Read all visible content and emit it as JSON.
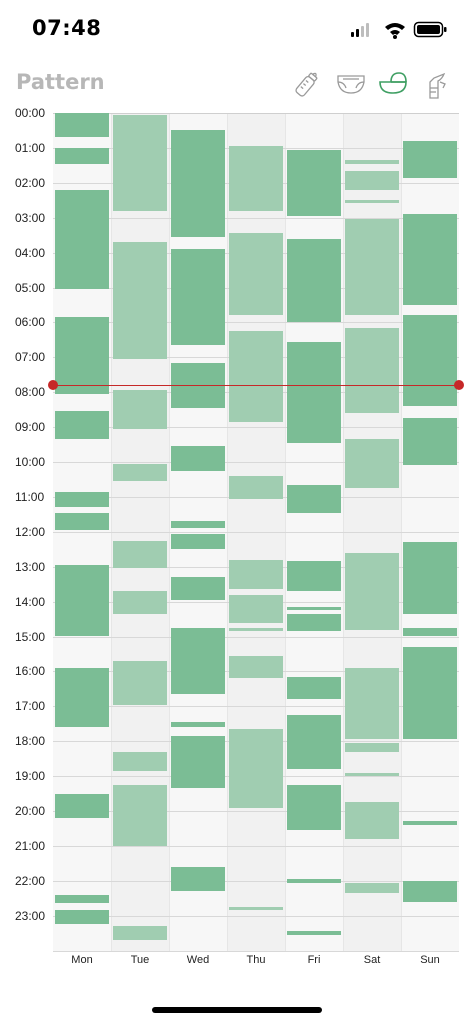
{
  "status_bar": {
    "time": "07:48"
  },
  "header": {
    "title": "Pattern"
  },
  "toolbar": {
    "tools": [
      {
        "icon": "bottle-icon",
        "selected": false
      },
      {
        "icon": "diaper-icon",
        "selected": false
      },
      {
        "icon": "sleep-bassinet-icon",
        "selected": true
      },
      {
        "icon": "breast-pump-icon",
        "selected": false
      }
    ]
  },
  "colors": {
    "accent": "#3f9f63",
    "sleep_dark": "#7bbd95",
    "sleep_light": "#a0cdb1",
    "now_line": "#c62828",
    "column_shade": "#f1f1f1",
    "column_plain": "#f7f7f7"
  },
  "chart_data": {
    "type": "timeline",
    "y_ticks": [
      "00:00",
      "01:00",
      "02:00",
      "03:00",
      "04:00",
      "05:00",
      "06:00",
      "07:00",
      "08:00",
      "09:00",
      "10:00",
      "11:00",
      "12:00",
      "13:00",
      "14:00",
      "15:00",
      "16:00",
      "17:00",
      "18:00",
      "19:00",
      "20:00",
      "21:00",
      "22:00",
      "23:00"
    ],
    "y_range_hours": [
      0,
      24
    ],
    "days": [
      "Mon",
      "Tue",
      "Wed",
      "Thu",
      "Fri",
      "Sat",
      "Sun"
    ],
    "current_time_hours": 7.8,
    "sleep_blocks": [
      {
        "day": 0,
        "start": 0.0,
        "end": 0.7,
        "shade": "dark"
      },
      {
        "day": 0,
        "start": 1.0,
        "end": 1.45,
        "shade": "dark"
      },
      {
        "day": 0,
        "start": 2.2,
        "end": 5.05,
        "shade": "dark"
      },
      {
        "day": 0,
        "start": 5.85,
        "end": 8.05,
        "shade": "dark"
      },
      {
        "day": 0,
        "start": 8.55,
        "end": 9.35,
        "shade": "dark"
      },
      {
        "day": 0,
        "start": 10.85,
        "end": 11.3,
        "shade": "dark"
      },
      {
        "day": 0,
        "start": 11.45,
        "end": 11.95,
        "shade": "dark"
      },
      {
        "day": 0,
        "start": 12.95,
        "end": 15.0,
        "shade": "dark"
      },
      {
        "day": 0,
        "start": 15.9,
        "end": 17.6,
        "shade": "dark"
      },
      {
        "day": 0,
        "start": 19.5,
        "end": 20.2,
        "shade": "dark"
      },
      {
        "day": 0,
        "start": 22.4,
        "end": 22.65,
        "shade": "dark"
      },
      {
        "day": 0,
        "start": 22.85,
        "end": 23.25,
        "shade": "dark"
      },
      {
        "day": 1,
        "start": 0.05,
        "end": 2.8,
        "shade": "light"
      },
      {
        "day": 1,
        "start": 3.7,
        "end": 7.05,
        "shade": "light"
      },
      {
        "day": 1,
        "start": 7.95,
        "end": 9.05,
        "shade": "light"
      },
      {
        "day": 1,
        "start": 10.05,
        "end": 10.55,
        "shade": "light"
      },
      {
        "day": 1,
        "start": 12.25,
        "end": 13.05,
        "shade": "light"
      },
      {
        "day": 1,
        "start": 13.7,
        "end": 14.35,
        "shade": "light"
      },
      {
        "day": 1,
        "start": 15.7,
        "end": 16.95,
        "shade": "light"
      },
      {
        "day": 1,
        "start": 18.3,
        "end": 18.85,
        "shade": "light"
      },
      {
        "day": 1,
        "start": 19.25,
        "end": 21.0,
        "shade": "light"
      },
      {
        "day": 1,
        "start": 23.3,
        "end": 23.7,
        "shade": "light"
      },
      {
        "day": 2,
        "start": 0.5,
        "end": 3.55,
        "shade": "dark"
      },
      {
        "day": 2,
        "start": 3.9,
        "end": 6.65,
        "shade": "dark"
      },
      {
        "day": 2,
        "start": 7.15,
        "end": 8.45,
        "shade": "dark"
      },
      {
        "day": 2,
        "start": 9.55,
        "end": 10.25,
        "shade": "dark"
      },
      {
        "day": 2,
        "start": 11.7,
        "end": 11.9,
        "shade": "dark"
      },
      {
        "day": 2,
        "start": 12.05,
        "end": 12.5,
        "shade": "dark"
      },
      {
        "day": 2,
        "start": 13.3,
        "end": 13.95,
        "shade": "dark"
      },
      {
        "day": 2,
        "start": 14.75,
        "end": 16.65,
        "shade": "dark"
      },
      {
        "day": 2,
        "start": 17.45,
        "end": 17.6,
        "shade": "dark"
      },
      {
        "day": 2,
        "start": 17.85,
        "end": 19.35,
        "shade": "dark"
      },
      {
        "day": 2,
        "start": 21.6,
        "end": 22.3,
        "shade": "dark"
      },
      {
        "day": 3,
        "start": 0.95,
        "end": 2.8,
        "shade": "light"
      },
      {
        "day": 3,
        "start": 3.45,
        "end": 5.8,
        "shade": "light"
      },
      {
        "day": 3,
        "start": 6.25,
        "end": 8.85,
        "shade": "light"
      },
      {
        "day": 3,
        "start": 10.4,
        "end": 11.05,
        "shade": "light"
      },
      {
        "day": 3,
        "start": 12.8,
        "end": 13.65,
        "shade": "light"
      },
      {
        "day": 3,
        "start": 13.8,
        "end": 14.6,
        "shade": "light"
      },
      {
        "day": 3,
        "start": 14.75,
        "end": 14.85,
        "shade": "light"
      },
      {
        "day": 3,
        "start": 15.55,
        "end": 16.2,
        "shade": "light"
      },
      {
        "day": 3,
        "start": 17.65,
        "end": 19.9,
        "shade": "light"
      },
      {
        "day": 3,
        "start": 22.75,
        "end": 22.85,
        "shade": "light"
      },
      {
        "day": 4,
        "start": 1.05,
        "end": 2.95,
        "shade": "dark"
      },
      {
        "day": 4,
        "start": 3.6,
        "end": 6.0,
        "shade": "dark"
      },
      {
        "day": 4,
        "start": 6.55,
        "end": 9.45,
        "shade": "dark"
      },
      {
        "day": 4,
        "start": 10.65,
        "end": 11.45,
        "shade": "dark"
      },
      {
        "day": 4,
        "start": 12.85,
        "end": 13.7,
        "shade": "dark"
      },
      {
        "day": 4,
        "start": 14.15,
        "end": 14.25,
        "shade": "dark"
      },
      {
        "day": 4,
        "start": 14.35,
        "end": 14.85,
        "shade": "dark"
      },
      {
        "day": 4,
        "start": 16.15,
        "end": 16.8,
        "shade": "dark"
      },
      {
        "day": 4,
        "start": 17.25,
        "end": 18.8,
        "shade": "dark"
      },
      {
        "day": 4,
        "start": 19.25,
        "end": 20.55,
        "shade": "dark"
      },
      {
        "day": 4,
        "start": 21.95,
        "end": 22.05,
        "shade": "dark"
      },
      {
        "day": 4,
        "start": 23.45,
        "end": 23.55,
        "shade": "dark"
      },
      {
        "day": 5,
        "start": 1.35,
        "end": 1.45,
        "shade": "light"
      },
      {
        "day": 5,
        "start": 1.65,
        "end": 2.2,
        "shade": "light"
      },
      {
        "day": 5,
        "start": 2.5,
        "end": 2.55,
        "shade": "light"
      },
      {
        "day": 5,
        "start": 3.05,
        "end": 5.8,
        "shade": "light"
      },
      {
        "day": 5,
        "start": 6.15,
        "end": 8.6,
        "shade": "light"
      },
      {
        "day": 5,
        "start": 9.35,
        "end": 10.75,
        "shade": "light"
      },
      {
        "day": 5,
        "start": 12.6,
        "end": 14.8,
        "shade": "light"
      },
      {
        "day": 5,
        "start": 15.9,
        "end": 17.95,
        "shade": "light"
      },
      {
        "day": 5,
        "start": 18.05,
        "end": 18.3,
        "shade": "light"
      },
      {
        "day": 5,
        "start": 18.9,
        "end": 19.0,
        "shade": "light"
      },
      {
        "day": 5,
        "start": 19.75,
        "end": 20.8,
        "shade": "light"
      },
      {
        "day": 5,
        "start": 22.05,
        "end": 22.35,
        "shade": "light"
      },
      {
        "day": 6,
        "start": 0.8,
        "end": 1.85,
        "shade": "dark"
      },
      {
        "day": 6,
        "start": 2.9,
        "end": 5.5,
        "shade": "dark"
      },
      {
        "day": 6,
        "start": 5.8,
        "end": 8.4,
        "shade": "dark"
      },
      {
        "day": 6,
        "start": 8.75,
        "end": 10.1,
        "shade": "dark"
      },
      {
        "day": 6,
        "start": 12.3,
        "end": 14.35,
        "shade": "dark"
      },
      {
        "day": 6,
        "start": 14.75,
        "end": 15.0,
        "shade": "dark"
      },
      {
        "day": 6,
        "start": 15.3,
        "end": 17.95,
        "shade": "dark"
      },
      {
        "day": 6,
        "start": 20.3,
        "end": 20.4,
        "shade": "dark"
      },
      {
        "day": 6,
        "start": 22.0,
        "end": 22.6,
        "shade": "dark"
      }
    ]
  }
}
